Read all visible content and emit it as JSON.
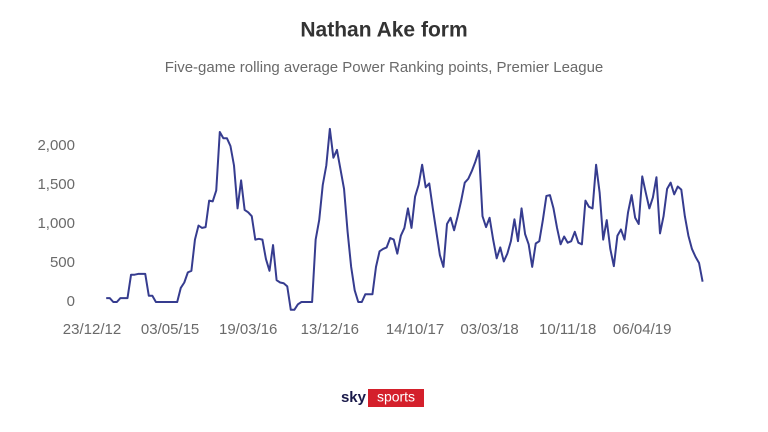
{
  "chart_data": {
    "type": "line",
    "title": "Nathan Ake form",
    "subtitle": "Five-game rolling average Power Ranking points, Premier League",
    "categories": [
      "23/12/12",
      null,
      null,
      null,
      null,
      null,
      null,
      null,
      null,
      null,
      null,
      null,
      null,
      null,
      null,
      null,
      null,
      null,
      null,
      null,
      null,
      null,
      "03/05/15",
      null,
      null,
      null,
      null,
      null,
      null,
      null,
      null,
      null,
      null,
      null,
      null,
      null,
      null,
      null,
      null,
      null,
      null,
      null,
      null,
      null,
      "19/03/16",
      null,
      null,
      null,
      null,
      null,
      null,
      null,
      null,
      null,
      null,
      null,
      null,
      null,
      null,
      null,
      null,
      null,
      null,
      null,
      null,
      null,
      null,
      "13/12/16",
      null,
      null,
      null,
      null,
      null,
      null,
      null,
      null,
      null,
      null,
      null,
      null,
      null,
      null,
      null,
      null,
      null,
      null,
      null,
      null,
      null,
      null,
      null,
      "14/10/17",
      null,
      null,
      null,
      null,
      null,
      null,
      null,
      null,
      null,
      null,
      null,
      null,
      null,
      null,
      null,
      null,
      null,
      null,
      null,
      null,
      "03/03/18",
      null,
      null,
      null,
      null,
      null,
      null,
      null,
      null,
      null,
      null,
      null,
      null,
      null,
      null,
      null,
      null,
      null,
      null,
      null,
      null,
      null,
      "10/11/18",
      null,
      null,
      null,
      null,
      null,
      null,
      null,
      null,
      null,
      null,
      null,
      null,
      null,
      null,
      null,
      null,
      null,
      null,
      null,
      null,
      "06/04/19",
      null,
      null,
      null,
      null,
      null,
      null,
      null,
      null,
      null,
      null,
      null,
      null,
      null,
      null,
      null,
      null,
      null
    ],
    "series": [
      {
        "color": "#363c8f",
        "values": [
          null,
          null,
          null,
          null,
          50,
          50,
          0,
          0,
          50,
          50,
          50,
          350,
          350,
          360,
          360,
          360,
          80,
          80,
          0,
          0,
          0,
          0,
          0,
          0,
          0,
          180,
          250,
          380,
          400,
          800,
          980,
          950,
          960,
          1300,
          1290,
          1430,
          2180,
          2100,
          2100,
          2000,
          1750,
          1200,
          1560,
          1180,
          1150,
          1100,
          800,
          810,
          800,
          550,
          400,
          730,
          280,
          250,
          240,
          200,
          -100,
          -100,
          -30,
          0,
          0,
          0,
          0,
          800,
          1050,
          1500,
          1750,
          2220,
          1850,
          1950,
          1700,
          1450,
          900,
          450,
          150,
          0,
          0,
          100,
          100,
          100,
          450,
          650,
          680,
          700,
          820,
          800,
          620,
          850,
          950,
          1200,
          950,
          1350,
          1500,
          1760,
          1470,
          1520,
          1200,
          900,
          600,
          450,
          1000,
          1080,
          920,
          1100,
          1300,
          1530,
          1580,
          1680,
          1800,
          1940,
          1100,
          960,
          1080,
          800,
          560,
          700,
          520,
          620,
          780,
          1060,
          780,
          1200,
          870,
          740,
          450,
          750,
          780,
          1050,
          1360,
          1370,
          1200,
          950,
          740,
          840,
          760,
          780,
          900,
          760,
          740,
          1300,
          1220,
          1200,
          1760,
          1400,
          800,
          1050,
          680,
          460,
          850,
          930,
          800,
          1150,
          1370,
          1080,
          1000,
          1610,
          1400,
          1200,
          1340,
          1600,
          880,
          1100,
          1450,
          1530,
          1380,
          1480,
          1440,
          1100,
          850,
          680,
          580,
          500,
          260
        ]
      }
    ],
    "ylim": [
      -150,
      2300
    ],
    "yticks": [
      0,
      500,
      {
        "value": 1000,
        "label": "1,000"
      },
      {
        "value": 1500,
        "label": "1,500"
      },
      {
        "value": 2000,
        "label": "2,000"
      }
    ],
    "source_logo": [
      "sky",
      "sports"
    ]
  }
}
